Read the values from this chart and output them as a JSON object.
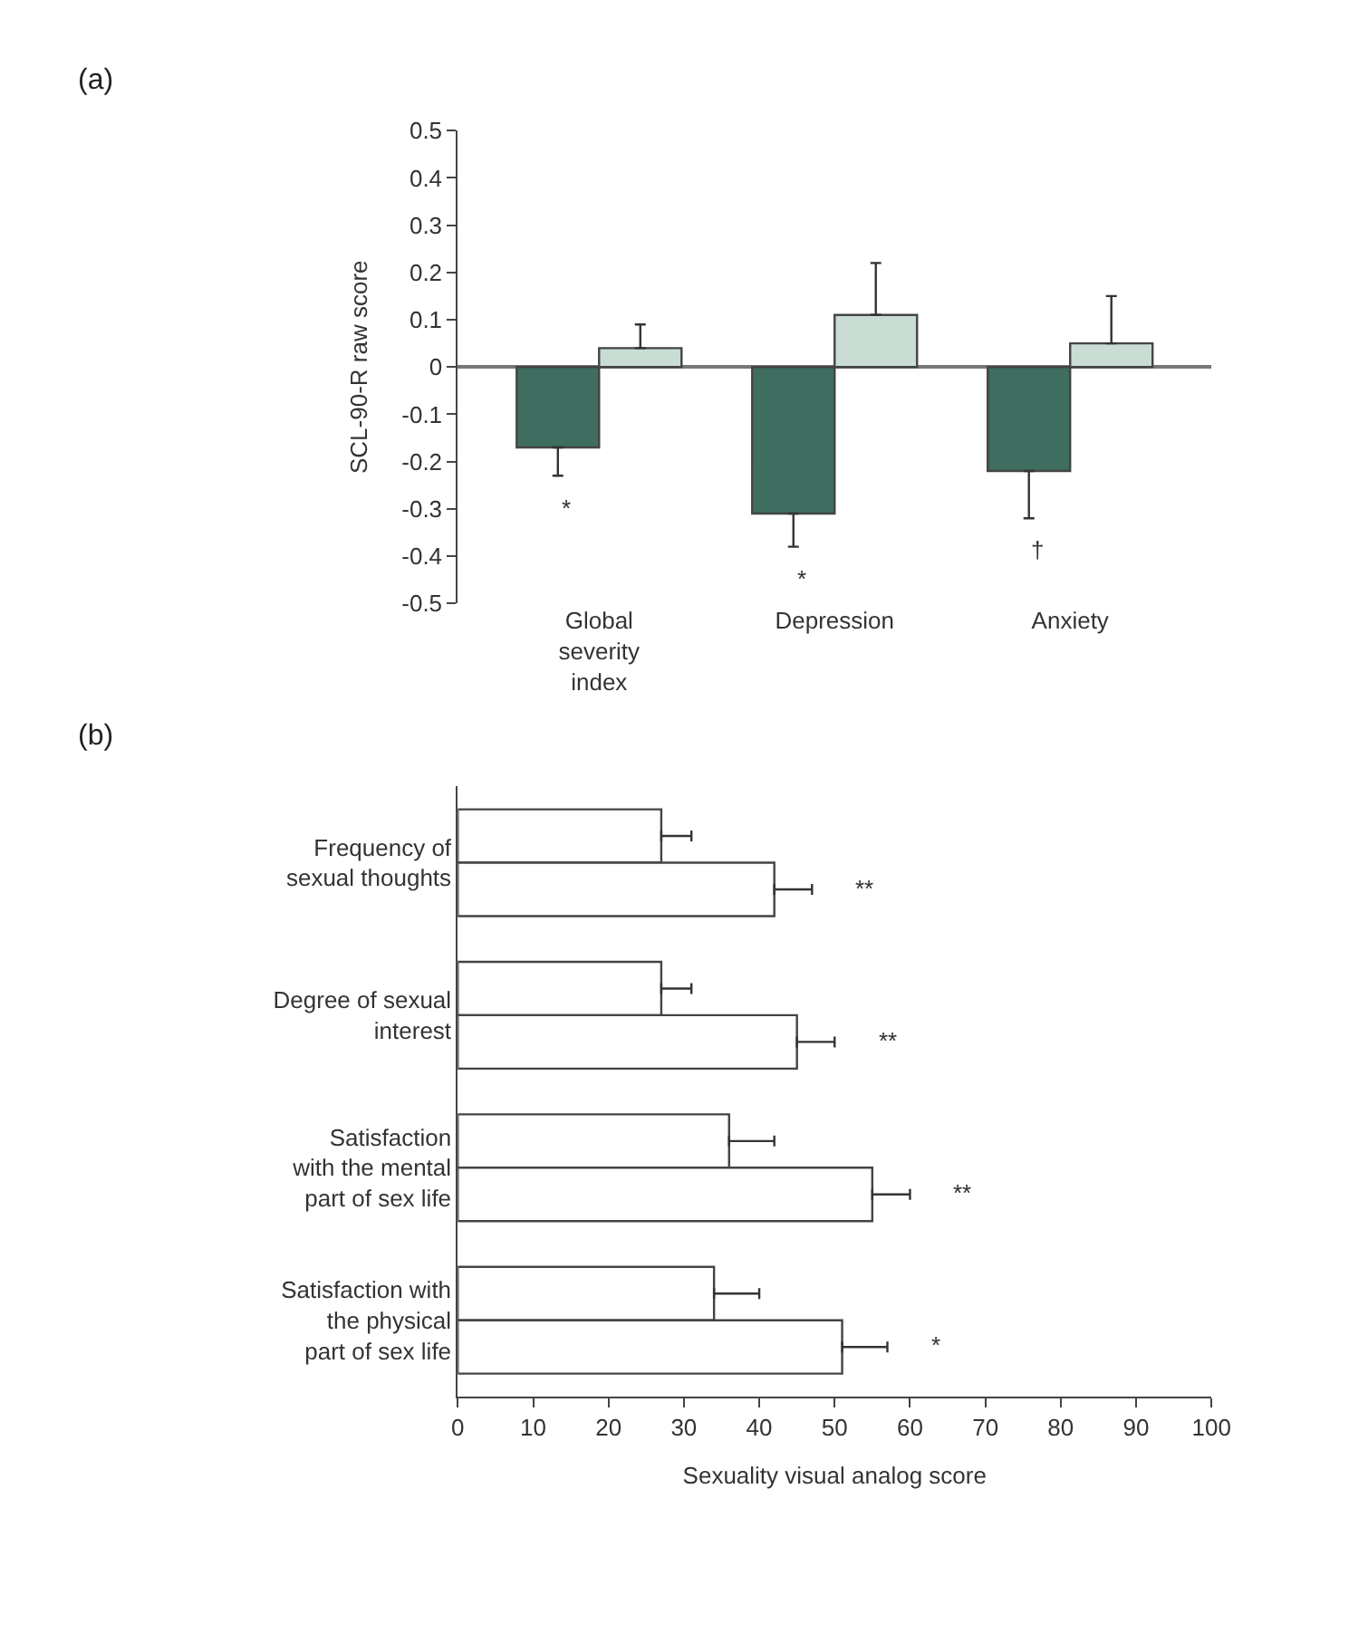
{
  "chart_data": [
    {
      "type": "bar",
      "ylabel": "SCL-90-R raw score",
      "categories": [
        "Global\nseverity\nindex",
        "Depression",
        "Anxiety"
      ],
      "series": [
        {
          "color": "#3f6e60",
          "values": [
            -0.17,
            -0.31,
            -0.22
          ],
          "errors": [
            [
              -0.23,
              -0.17
            ],
            [
              -0.38,
              -0.31
            ],
            [
              -0.32,
              -0.22
            ]
          ]
        },
        {
          "color": "#c9ddd4",
          "values": [
            0.04,
            0.11,
            0.05
          ],
          "errors": [
            [
              0.04,
              0.09
            ],
            [
              0.11,
              0.22
            ],
            [
              0.05,
              0.15
            ]
          ]
        }
      ],
      "ylim": [
        -0.5,
        0.5
      ],
      "yticks": [
        -0.5,
        -0.4,
        -0.3,
        -0.2,
        -0.1,
        0,
        0.1,
        0.2,
        0.3,
        0.4,
        0.5
      ],
      "annotations": [
        "(a)",
        "*",
        "*",
        "†"
      ]
    },
    {
      "type": "bar",
      "orientation": "horizontal",
      "xlabel": "Sexuality visual analog score",
      "categories": [
        "Frequency of\nsexual thoughts",
        "Degree of sexual\ninterest",
        "Satisfaction\nwith the mental\npart of sex life",
        "Satisfaction with\nthe physical\npart of sex life"
      ],
      "series": [
        {
          "color": "#ffffff",
          "values": [
            27,
            27,
            36,
            34
          ],
          "errors": [
            [
              27,
              31
            ],
            [
              27,
              31
            ],
            [
              36,
              42
            ],
            [
              34,
              40
            ]
          ]
        },
        {
          "color": "#ffffff",
          "values": [
            42,
            45,
            55,
            51
          ],
          "errors": [
            [
              42,
              47
            ],
            [
              45,
              50
            ],
            [
              55,
              60
            ],
            [
              51,
              57
            ]
          ]
        }
      ],
      "xlim": [
        0,
        100
      ],
      "xticks": [
        0,
        10,
        20,
        30,
        40,
        50,
        60,
        70,
        80,
        90,
        100
      ],
      "annotations": [
        "(b)",
        "**",
        "**",
        "**",
        "*"
      ]
    }
  ]
}
